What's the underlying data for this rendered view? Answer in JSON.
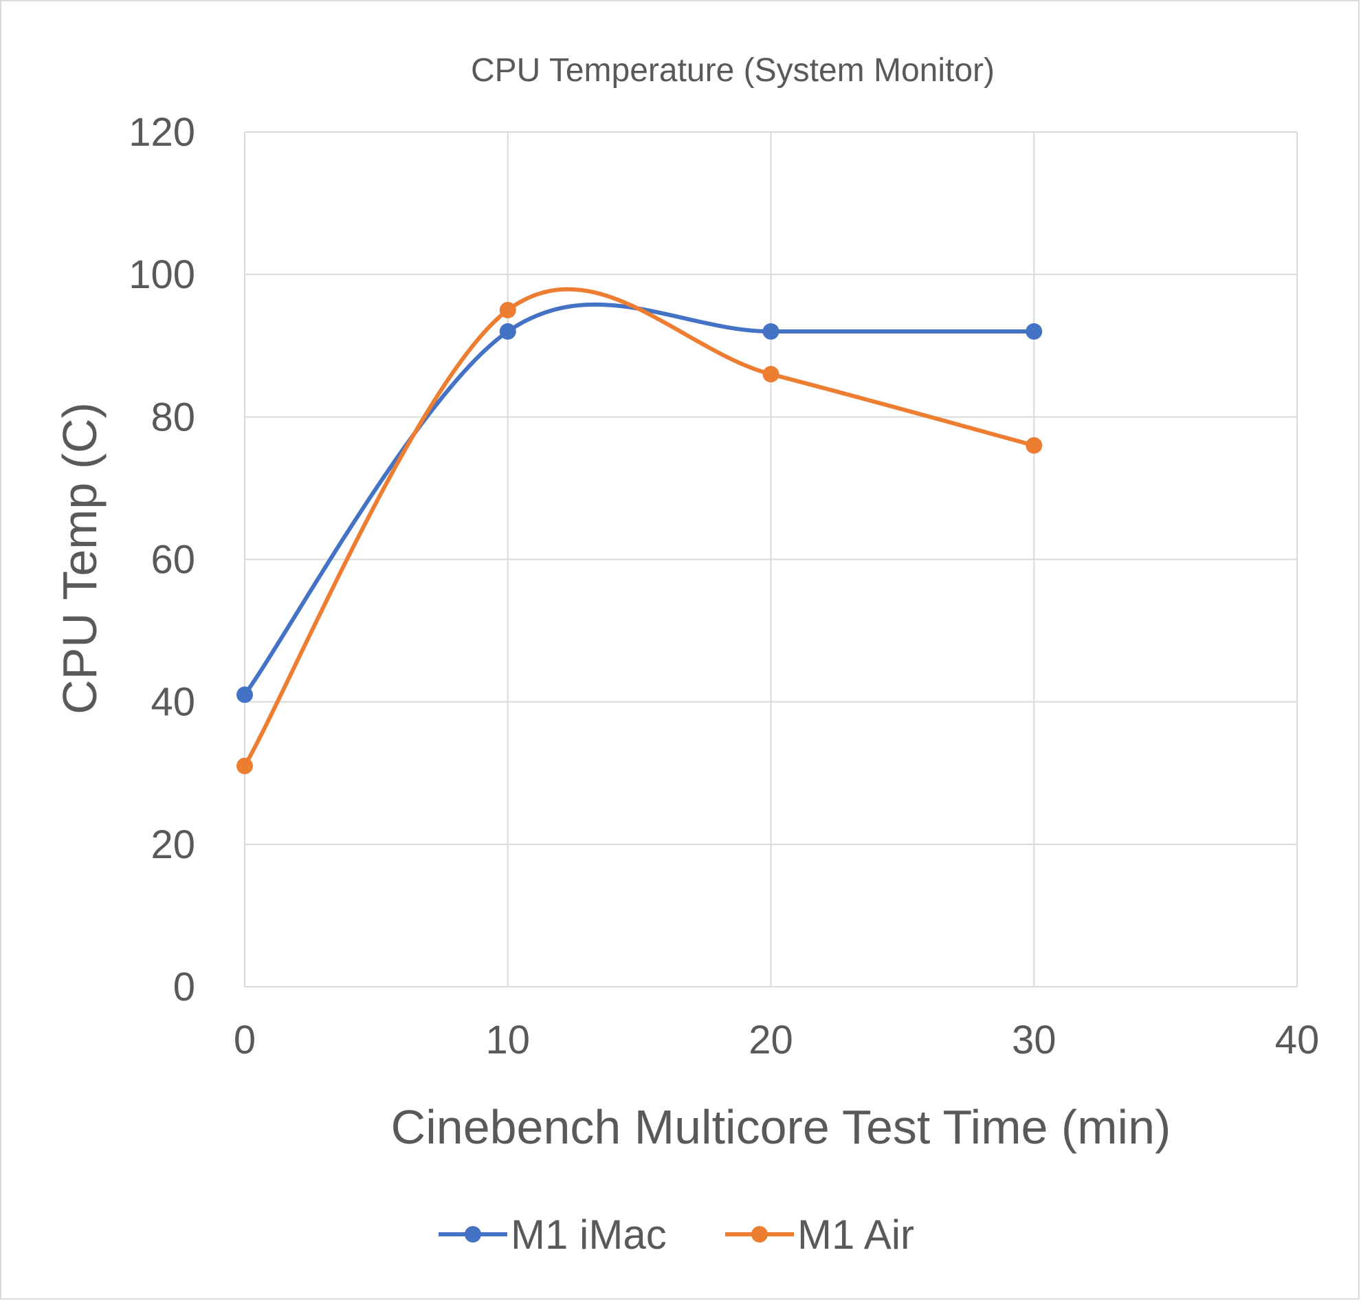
{
  "chart_data": {
    "type": "scatter",
    "title": "CPU Temperature (System Monitor)",
    "xlabel": "Cinebench Multicore Test Time (min)",
    "ylabel": "CPU Temp (C)",
    "xlim": [
      0,
      40
    ],
    "ylim": [
      0,
      120
    ],
    "x_ticks": [
      0,
      10,
      20,
      30,
      40
    ],
    "y_ticks": [
      0,
      20,
      40,
      60,
      80,
      100,
      120
    ],
    "grid": true,
    "smoothed_lines": true,
    "legend_position": "bottom",
    "series": [
      {
        "name": "M1 iMac",
        "color": "#4472c4",
        "x": [
          0,
          10,
          20,
          30
        ],
        "y": [
          41,
          92,
          92,
          92
        ]
      },
      {
        "name": "M1 Air",
        "color": "#ed7d31",
        "x": [
          0,
          10,
          20,
          30
        ],
        "y": [
          31,
          95,
          86,
          76
        ]
      }
    ]
  }
}
